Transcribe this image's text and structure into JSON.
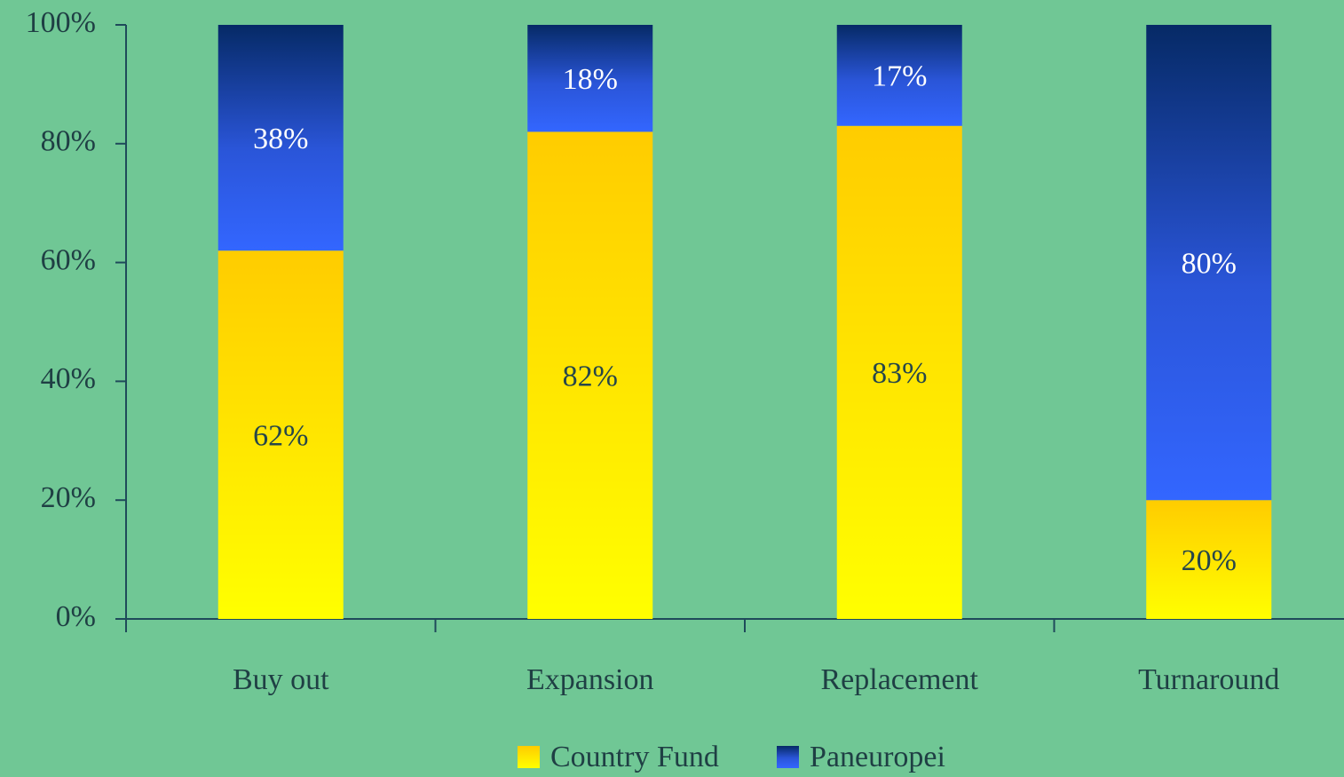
{
  "chart_data": {
    "type": "stacked_bar",
    "categories": [
      "Buy out",
      "Expansion",
      "Replacement",
      "Turnaround"
    ],
    "series": [
      {
        "name": "Country Fund",
        "color": "#ffdd00",
        "values": [
          62,
          82,
          83,
          20
        ],
        "value_labels": [
          "62%",
          "82%",
          "83%",
          "20%"
        ]
      },
      {
        "name": "Paneuropei",
        "color": "#2f5fe6",
        "values": [
          38,
          18,
          17,
          80
        ],
        "value_labels": [
          "38%",
          "18%",
          "17%",
          "80%"
        ]
      }
    ],
    "ylim": [
      0,
      100
    ],
    "yticks": [
      {
        "value": 0,
        "label": "0%"
      },
      {
        "value": 20,
        "label": "20%"
      },
      {
        "value": 40,
        "label": "40%"
      },
      {
        "value": 60,
        "label": "60%"
      },
      {
        "value": 80,
        "label": "80%"
      },
      {
        "value": 100,
        "label": "100%"
      }
    ],
    "legend": "bottom"
  }
}
